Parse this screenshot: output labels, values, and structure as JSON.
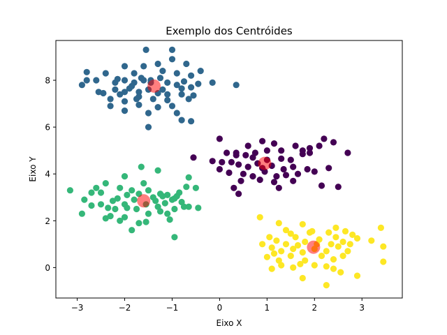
{
  "chart_data": {
    "type": "scatter",
    "title": "Exemplo dos Centróides",
    "xlabel": "Eixo X",
    "ylabel": "Eixo Y",
    "xlim": [
      -3.45,
      3.85
    ],
    "ylim": [
      -1.3,
      9.7
    ],
    "xticks": [
      -3,
      -2,
      -1,
      0,
      1,
      2,
      3
    ],
    "yticks": [
      0,
      2,
      4,
      6,
      8
    ],
    "grid": false,
    "legend": "none",
    "series": [
      {
        "color": "#30678d",
        "points": [
          [
            -1.0,
            9.3
          ],
          [
            -1.55,
            9.3
          ],
          [
            -1.0,
            8.9
          ],
          [
            -2.0,
            8.6
          ],
          [
            -1.6,
            8.6
          ],
          [
            -1.3,
            8.7
          ],
          [
            -0.7,
            8.7
          ],
          [
            -0.4,
            8.4
          ],
          [
            -2.8,
            8.35
          ],
          [
            -2.4,
            8.3
          ],
          [
            -1.8,
            8.3
          ],
          [
            -1.2,
            8.4
          ],
          [
            -0.9,
            8.3
          ],
          [
            -0.6,
            8.2
          ],
          [
            -2.8,
            8.0
          ],
          [
            -2.6,
            8.0
          ],
          [
            -2.2,
            7.9
          ],
          [
            -2.0,
            8.0
          ],
          [
            -1.8,
            7.9
          ],
          [
            -1.6,
            8.0
          ],
          [
            -1.45,
            7.9
          ],
          [
            -1.1,
            7.9
          ],
          [
            -0.9,
            7.8
          ],
          [
            -0.45,
            7.85
          ],
          [
            0.35,
            7.8
          ],
          [
            -2.9,
            7.8
          ],
          [
            -2.2,
            7.6
          ],
          [
            -1.9,
            7.65
          ],
          [
            -1.7,
            7.5
          ],
          [
            -1.5,
            7.6
          ],
          [
            -1.2,
            7.6
          ],
          [
            -0.8,
            7.65
          ],
          [
            -0.6,
            7.7
          ],
          [
            -2.55,
            7.5
          ],
          [
            -2.1,
            7.4
          ],
          [
            -2.0,
            7.5
          ],
          [
            -1.7,
            7.3
          ],
          [
            -1.3,
            7.45
          ],
          [
            -1.1,
            7.4
          ],
          [
            -0.8,
            7.4
          ],
          [
            -0.55,
            7.35
          ],
          [
            -2.3,
            7.2
          ],
          [
            -2.0,
            7.1
          ],
          [
            -1.75,
            7.2
          ],
          [
            -1.4,
            7.2
          ],
          [
            -1.1,
            7.15
          ],
          [
            -0.65,
            7.2
          ],
          [
            -2.3,
            6.9
          ],
          [
            -1.7,
            6.95
          ],
          [
            -1.3,
            6.85
          ],
          [
            -1.0,
            6.9
          ],
          [
            -2.0,
            6.7
          ],
          [
            -1.5,
            6.6
          ],
          [
            -0.9,
            6.6
          ],
          [
            -0.8,
            6.3
          ],
          [
            -0.6,
            6.25
          ],
          [
            -1.5,
            6.0
          ],
          [
            -0.15,
            7.9
          ],
          [
            -1.45,
            8.0
          ],
          [
            -1.25,
            8.1
          ],
          [
            -2.45,
            7.45
          ],
          [
            -1.85,
            7.75
          ],
          [
            -0.75,
            7.95
          ],
          [
            -1.65,
            8.1
          ],
          [
            -2.15,
            8.05
          ]
        ]
      },
      {
        "color": "#440154",
        "points": [
          [
            1.15,
            5.3
          ],
          [
            0.0,
            5.5
          ],
          [
            0.35,
            4.9
          ],
          [
            0.75,
            4.9
          ],
          [
            0.9,
            5.4
          ],
          [
            1.3,
            5.0
          ],
          [
            1.6,
            5.2
          ],
          [
            1.75,
            5.0
          ],
          [
            1.9,
            5.1
          ],
          [
            2.1,
            5.2
          ],
          [
            2.2,
            5.5
          ],
          [
            2.4,
            5.35
          ],
          [
            2.7,
            4.9
          ],
          [
            0.15,
            4.9
          ],
          [
            0.35,
            4.8
          ],
          [
            0.55,
            4.8
          ],
          [
            0.7,
            4.7
          ],
          [
            1.0,
            4.6
          ],
          [
            1.3,
            4.65
          ],
          [
            1.5,
            4.6
          ],
          [
            1.75,
            4.85
          ],
          [
            -0.15,
            4.55
          ],
          [
            0.05,
            4.5
          ],
          [
            0.4,
            4.4
          ],
          [
            0.6,
            4.3
          ],
          [
            0.8,
            4.45
          ],
          [
            1.1,
            4.35
          ],
          [
            1.35,
            4.2
          ],
          [
            1.55,
            4.3
          ],
          [
            1.85,
            4.2
          ],
          [
            2.0,
            4.1
          ],
          [
            2.3,
            4.25
          ],
          [
            0.0,
            4.2
          ],
          [
            0.2,
            4.05
          ],
          [
            0.5,
            4.0
          ],
          [
            0.7,
            3.9
          ],
          [
            0.95,
            4.1
          ],
          [
            1.2,
            3.9
          ],
          [
            1.4,
            3.95
          ],
          [
            1.65,
            4.0
          ],
          [
            0.45,
            3.7
          ],
          [
            0.85,
            3.75
          ],
          [
            1.15,
            3.65
          ],
          [
            0.3,
            3.4
          ],
          [
            1.25,
            3.4
          ],
          [
            1.9,
            4.9
          ],
          [
            0.6,
            5.2
          ],
          [
            2.15,
            3.5
          ],
          [
            2.5,
            3.45
          ],
          [
            0.4,
            3.15
          ],
          [
            -0.55,
            4.7
          ],
          [
            1.0,
            5.0
          ],
          [
            0.25,
            4.5
          ],
          [
            1.55,
            3.7
          ],
          [
            0.9,
            4.25
          ]
        ]
      },
      {
        "color": "#35b779",
        "points": [
          [
            -1.65,
            4.3
          ],
          [
            -1.3,
            4.15
          ],
          [
            -2.0,
            3.9
          ],
          [
            -2.4,
            3.6
          ],
          [
            -1.6,
            3.6
          ],
          [
            -0.65,
            3.85
          ],
          [
            -2.6,
            3.4
          ],
          [
            -2.1,
            3.4
          ],
          [
            -1.85,
            3.3
          ],
          [
            -1.5,
            3.3
          ],
          [
            -0.7,
            3.45
          ],
          [
            -0.5,
            3.4
          ],
          [
            -3.15,
            3.3
          ],
          [
            -2.7,
            3.2
          ],
          [
            -2.5,
            3.2
          ],
          [
            -1.95,
            3.1
          ],
          [
            -1.25,
            3.15
          ],
          [
            -1.1,
            3.1
          ],
          [
            -0.9,
            3.05
          ],
          [
            -0.85,
            3.2
          ],
          [
            -2.15,
            2.95
          ],
          [
            -1.8,
            2.9
          ],
          [
            -1.35,
            2.85
          ],
          [
            -1.0,
            2.9
          ],
          [
            -0.8,
            2.8
          ],
          [
            -2.85,
            2.9
          ],
          [
            -2.5,
            2.7
          ],
          [
            -2.0,
            2.7
          ],
          [
            -1.55,
            2.7
          ],
          [
            -1.15,
            2.75
          ],
          [
            -2.7,
            2.65
          ],
          [
            -2.2,
            2.5
          ],
          [
            -1.75,
            2.5
          ],
          [
            -1.3,
            2.6
          ],
          [
            -0.95,
            2.5
          ],
          [
            -0.75,
            2.6
          ],
          [
            -0.65,
            2.6
          ],
          [
            -0.45,
            2.55
          ],
          [
            -2.9,
            2.3
          ],
          [
            -2.3,
            2.2
          ],
          [
            -2.0,
            2.15
          ],
          [
            -1.5,
            2.3
          ],
          [
            -1.25,
            2.4
          ],
          [
            -1.1,
            2.3
          ],
          [
            -2.1,
            2.0
          ],
          [
            -1.7,
            1.9
          ],
          [
            -1.55,
            1.95
          ],
          [
            -1.05,
            2.05
          ],
          [
            -1.85,
            1.6
          ],
          [
            -0.95,
            1.3
          ],
          [
            -2.4,
            2.1
          ],
          [
            -1.95,
            2.55
          ],
          [
            -1.4,
            3.0
          ],
          [
            -0.95,
            2.95
          ],
          [
            -2.25,
            2.85
          ],
          [
            -1.7,
            3.15
          ],
          [
            -2.35,
            2.55
          ],
          [
            -1.2,
            3.05
          ]
        ]
      },
      {
        "color": "#fde725",
        "points": [
          [
            0.85,
            2.15
          ],
          [
            1.25,
            1.9
          ],
          [
            1.75,
            1.85
          ],
          [
            2.45,
            1.7
          ],
          [
            2.65,
            1.55
          ],
          [
            3.4,
            1.7
          ],
          [
            1.05,
            1.3
          ],
          [
            1.5,
            1.45
          ],
          [
            1.9,
            1.5
          ],
          [
            2.3,
            1.5
          ],
          [
            2.8,
            1.4
          ],
          [
            3.2,
            1.15
          ],
          [
            0.9,
            1.0
          ],
          [
            1.2,
            1.15
          ],
          [
            1.4,
            1.0
          ],
          [
            1.6,
            1.3
          ],
          [
            1.8,
            1.1
          ],
          [
            2.1,
            1.2
          ],
          [
            2.35,
            1.0
          ],
          [
            2.6,
            1.1
          ],
          [
            2.75,
            1.0
          ],
          [
            3.45,
            0.9
          ],
          [
            1.1,
            0.85
          ],
          [
            1.3,
            0.7
          ],
          [
            1.55,
            0.8
          ],
          [
            1.75,
            0.65
          ],
          [
            2.0,
            0.8
          ],
          [
            2.25,
            0.7
          ],
          [
            2.5,
            0.9
          ],
          [
            2.7,
            0.7
          ],
          [
            1.0,
            0.45
          ],
          [
            1.25,
            0.3
          ],
          [
            1.5,
            0.5
          ],
          [
            1.8,
            0.3
          ],
          [
            2.15,
            0.5
          ],
          [
            2.4,
            0.35
          ],
          [
            3.45,
            0.25
          ],
          [
            1.3,
            0.1
          ],
          [
            1.7,
            0.15
          ],
          [
            2.0,
            0.1
          ],
          [
            2.25,
            0.05
          ],
          [
            1.1,
            -0.05
          ],
          [
            1.55,
            0.0
          ],
          [
            2.4,
            -0.05
          ],
          [
            1.75,
            -0.45
          ],
          [
            2.55,
            -0.2
          ],
          [
            2.9,
            -0.35
          ],
          [
            2.25,
            -0.75
          ],
          [
            1.95,
            1.55
          ],
          [
            2.05,
            1.0
          ],
          [
            1.4,
            1.6
          ],
          [
            2.9,
            1.25
          ],
          [
            1.65,
            0.95
          ],
          [
            2.45,
            1.3
          ],
          [
            1.15,
            0.6
          ],
          [
            2.6,
            0.5
          ]
        ]
      }
    ],
    "centroids": {
      "color": "#ff0000",
      "points": [
        [
          -1.38,
          7.75
        ],
        [
          0.95,
          4.45
        ],
        [
          -1.6,
          2.85
        ],
        [
          1.98,
          0.87
        ]
      ]
    }
  }
}
